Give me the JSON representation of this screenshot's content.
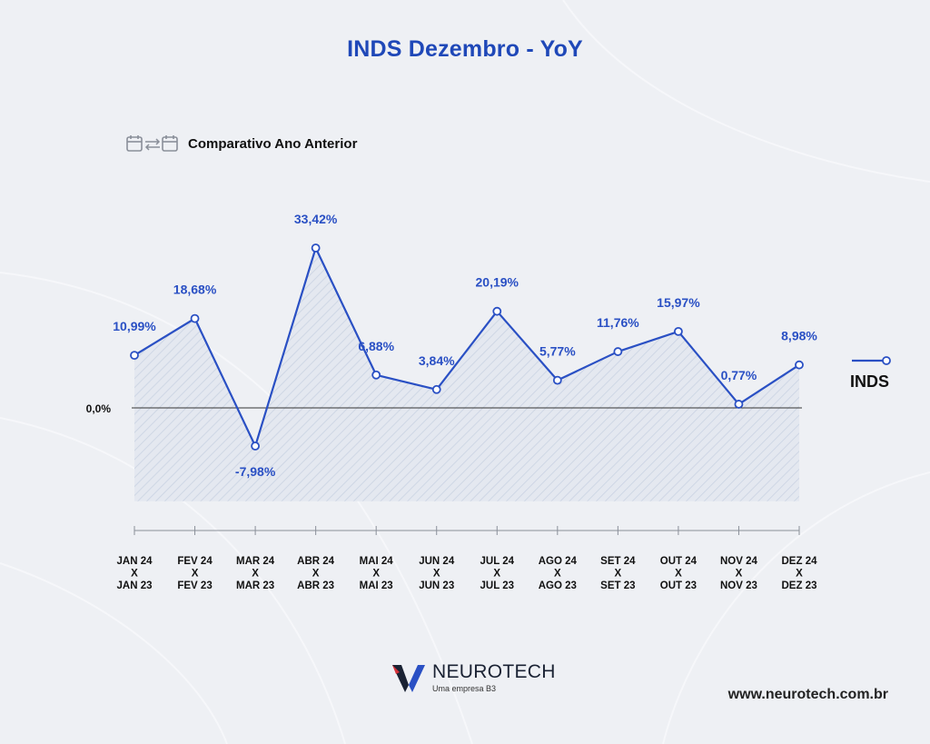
{
  "title": "INDS Dezembro - YoY",
  "subtitle": "Comparativo Ano Anterior",
  "subtitle_icon": "calendar-compare-icon",
  "chart_data": {
    "type": "line",
    "title": "INDS Dezembro - YoY",
    "categories": [
      [
        "JAN 24",
        "X",
        "JAN 23"
      ],
      [
        "FEV 24",
        "X",
        "FEV 23"
      ],
      [
        "MAR 24",
        "X",
        "MAR 23"
      ],
      [
        "ABR 24",
        "X",
        "ABR 23"
      ],
      [
        "MAI 24",
        "X",
        "MAI 23"
      ],
      [
        "JUN 24",
        "X",
        "JUN 23"
      ],
      [
        "JUL 24",
        "X",
        "JUL 23"
      ],
      [
        "AGO 24",
        "X",
        "AGO 23"
      ],
      [
        "SET 24",
        "X",
        "SET 23"
      ],
      [
        "OUT 24",
        "X",
        "OUT 23"
      ],
      [
        "NOV 24",
        "X",
        "NOV 23"
      ],
      [
        "DEZ 24",
        "X",
        "DEZ 23"
      ]
    ],
    "series": [
      {
        "name": "INDS",
        "values": [
          10.99,
          18.68,
          -7.98,
          33.42,
          6.88,
          3.84,
          20.19,
          5.77,
          11.76,
          15.97,
          0.77,
          8.98
        ],
        "labels": [
          "10,99%",
          "18,68%",
          "-7,98%",
          "33,42%",
          "6,88%",
          "3,84%",
          "20,19%",
          "5,77%",
          "11,76%",
          "15,97%",
          "0,77%",
          "8,98%"
        ]
      }
    ],
    "baseline_label": "0,0%",
    "ylim": [
      -19.5,
      33.42
    ],
    "legend": "right",
    "grid": false,
    "colors": {
      "line": "#2a50c4",
      "label": "#2a50c4",
      "hatch": "#c9d2e2",
      "area": "#e4e8f0"
    }
  },
  "legend_label": "INDS",
  "logo": {
    "name": "NEUROTECH",
    "tagline": "Uma empresa B3"
  },
  "website": "www.neurotech.com.br"
}
